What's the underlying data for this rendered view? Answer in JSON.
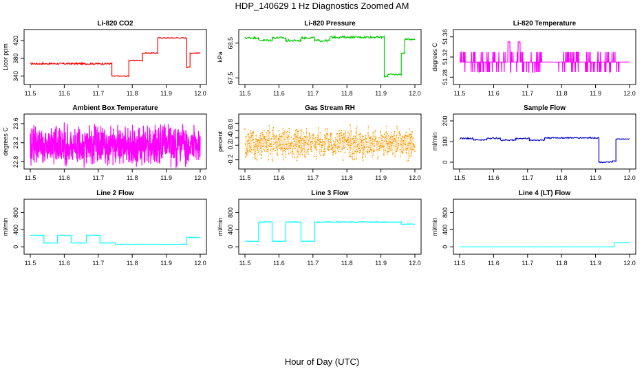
{
  "figure": {
    "title": "HDP_140629  1 Hz Diagnostics Zoomed AM",
    "xlabel": "Hour of Day (UTC)"
  },
  "chart_data": [
    {
      "type": "line",
      "title": "Li-820 CO2",
      "ylabel": "Licor ppm",
      "color": "#ff0000",
      "xlim": [
        11.5,
        12.0
      ],
      "ylim": [
        332,
        434
      ],
      "xticks": [
        "11.5",
        "11.6",
        "11.7",
        "11.8",
        "11.9",
        "12.0"
      ],
      "yticks": [
        "340",
        "380",
        "420"
      ],
      "segments": [
        [
          11.5,
          11.74,
          368,
          2
        ],
        [
          11.74,
          11.79,
          340,
          1
        ],
        [
          11.79,
          11.83,
          375,
          1
        ],
        [
          11.83,
          11.875,
          392,
          1
        ],
        [
          11.875,
          11.96,
          426,
          1
        ],
        [
          11.96,
          11.97,
          360,
          1
        ],
        [
          11.97,
          12.0,
          392,
          1
        ]
      ]
    },
    {
      "type": "line",
      "title": "Li-820 Pressure",
      "ylabel": "kPa",
      "color": "#00cc00",
      "xlim": [
        11.5,
        12.0
      ],
      "ylim": [
        67.45,
        68.75
      ],
      "xticks": [
        "11.5",
        "11.6",
        "11.7",
        "11.8",
        "11.9",
        "12.0"
      ],
      "yticks": [
        "67.5",
        "68.5"
      ],
      "segments": [
        [
          11.5,
          11.54,
          68.65,
          0.03
        ],
        [
          11.54,
          11.58,
          68.58,
          0.03
        ],
        [
          11.58,
          11.62,
          68.65,
          0.03
        ],
        [
          11.62,
          11.665,
          68.57,
          0.03
        ],
        [
          11.665,
          11.705,
          68.65,
          0.03
        ],
        [
          11.705,
          11.75,
          68.57,
          0.03
        ],
        [
          11.75,
          11.91,
          68.67,
          0.03
        ],
        [
          11.91,
          11.92,
          67.55,
          0.02
        ],
        [
          11.92,
          11.96,
          67.6,
          0.02
        ],
        [
          11.96,
          11.97,
          68.2,
          0.02
        ],
        [
          11.97,
          12.0,
          68.61,
          0.02
        ]
      ]
    },
    {
      "type": "line",
      "title": "Li-820 Temperature",
      "ylabel": "degrees C",
      "color": "#ff00ff",
      "xlim": [
        11.5,
        12.0
      ],
      "ylim": [
        51.275,
        51.365
      ],
      "xticks": [
        "11.5",
        "11.6",
        "11.7",
        "11.8",
        "11.9",
        "12.0"
      ],
      "yticks": [
        "51.28",
        "51.32",
        "51.36"
      ],
      "base": 51.31,
      "hi": 51.33,
      "lo": 51.29,
      "spike": 51.35
    },
    {
      "type": "line",
      "title": "Ambient Box Temperature",
      "ylabel": "degrees C",
      "color": "#ff00ff",
      "xlim": [
        11.5,
        12.0
      ],
      "ylim": [
        22.75,
        23.7
      ],
      "xticks": [
        "11.5",
        "11.6",
        "11.7",
        "11.8",
        "11.9",
        "12.0"
      ],
      "yticks": [
        "22.8",
        "23.2",
        "23.6"
      ],
      "base": 23.15,
      "spread": 0.5
    },
    {
      "type": "scatter",
      "title": "Gas Stream RH",
      "ylabel": "percent",
      "color": "#ff9900",
      "xlim": [
        11.5,
        12.0
      ],
      "ylim": [
        -0.32,
        0.92
      ],
      "xticks": [
        "11.5",
        "11.6",
        "11.7",
        "11.8",
        "11.9",
        "12.0"
      ],
      "yticks": [
        "-0.2",
        "0.2",
        "0.4",
        "0.6",
        "0.8"
      ],
      "base": 0.25,
      "spread": 0.35
    },
    {
      "type": "line",
      "title": "Sample Flow",
      "ylabel": "ml/min",
      "color": "#0000cc",
      "xlim": [
        11.5,
        12.0
      ],
      "ylim": [
        -10,
        210
      ],
      "xticks": [
        "11.5",
        "11.6",
        "11.7",
        "11.8",
        "11.9",
        "12.0"
      ],
      "yticks": [
        "0",
        "100",
        "200"
      ],
      "segments": [
        [
          11.5,
          11.54,
          115,
          3
        ],
        [
          11.54,
          11.58,
          108,
          3
        ],
        [
          11.58,
          11.62,
          116,
          3
        ],
        [
          11.62,
          11.665,
          107,
          3
        ],
        [
          11.665,
          11.705,
          115,
          3
        ],
        [
          11.705,
          11.75,
          107,
          3
        ],
        [
          11.75,
          11.91,
          118,
          3
        ],
        [
          11.91,
          11.95,
          0,
          2
        ],
        [
          11.95,
          11.96,
          5,
          2
        ],
        [
          11.96,
          12.0,
          112,
          2
        ]
      ]
    },
    {
      "type": "line",
      "title": "Line 2 Flow",
      "ylabel": "ml/min",
      "color": "#00ffff",
      "xlim": [
        11.5,
        12.0
      ],
      "ylim": [
        -60,
        1000
      ],
      "xticks": [
        "11.5",
        "11.6",
        "11.7",
        "11.8",
        "11.9",
        "12.0"
      ],
      "yticks": [
        "0",
        "400",
        "800"
      ],
      "segments": [
        [
          11.5,
          11.54,
          270,
          5
        ],
        [
          11.54,
          11.58,
          90,
          5
        ],
        [
          11.58,
          11.62,
          270,
          5
        ],
        [
          11.62,
          11.665,
          90,
          5
        ],
        [
          11.665,
          11.705,
          270,
          5
        ],
        [
          11.705,
          11.75,
          90,
          5
        ],
        [
          11.75,
          11.96,
          60,
          3
        ],
        [
          11.96,
          12.0,
          220,
          8
        ]
      ]
    },
    {
      "type": "line",
      "title": "Line 3 Flow",
      "ylabel": "ml/min",
      "color": "#00ffff",
      "xlim": [
        11.5,
        12.0
      ],
      "ylim": [
        -60,
        1000
      ],
      "xticks": [
        "11.5",
        "11.6",
        "11.7",
        "11.8",
        "11.9",
        "12.0"
      ],
      "yticks": [
        "0",
        "400",
        "800"
      ],
      "segments": [
        [
          11.5,
          11.54,
          130,
          5
        ],
        [
          11.54,
          11.58,
          580,
          8
        ],
        [
          11.58,
          11.62,
          130,
          5
        ],
        [
          11.62,
          11.665,
          580,
          8
        ],
        [
          11.665,
          11.705,
          130,
          5
        ],
        [
          11.705,
          11.96,
          580,
          10
        ],
        [
          11.96,
          12.0,
          530,
          8
        ]
      ]
    },
    {
      "type": "line",
      "title": "Line 4 (LT) Flow",
      "ylabel": "ml/min",
      "color": "#00ffff",
      "xlim": [
        11.5,
        12.0
      ],
      "ylim": [
        -60,
        1000
      ],
      "xticks": [
        "11.5",
        "11.6",
        "11.7",
        "11.8",
        "11.9",
        "12.0"
      ],
      "yticks": [
        "0",
        "400",
        "800"
      ],
      "segments": [
        [
          11.5,
          11.955,
          0,
          1
        ],
        [
          11.955,
          12.0,
          95,
          3
        ]
      ]
    }
  ]
}
